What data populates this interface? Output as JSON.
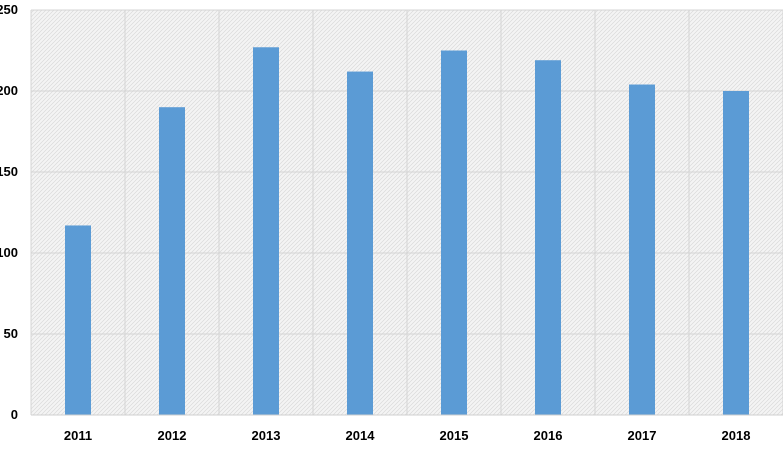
{
  "chart_data": {
    "type": "bar",
    "categories": [
      "2011",
      "2012",
      "2013",
      "2014",
      "2015",
      "2016",
      "2017",
      "2018"
    ],
    "values": [
      117,
      190,
      227,
      212,
      225,
      219,
      204,
      200
    ],
    "y_ticks": [
      0,
      50,
      100,
      150,
      200,
      250
    ],
    "y_tick_labels": [
      "0",
      "50",
      "100",
      "150",
      "200",
      "250"
    ],
    "ylim": [
      0,
      250
    ],
    "title": "",
    "xlabel": "",
    "ylabel": "",
    "grid": true,
    "legend": "none",
    "bar_color": "#5b9bd5",
    "background": "hatched light gray"
  }
}
